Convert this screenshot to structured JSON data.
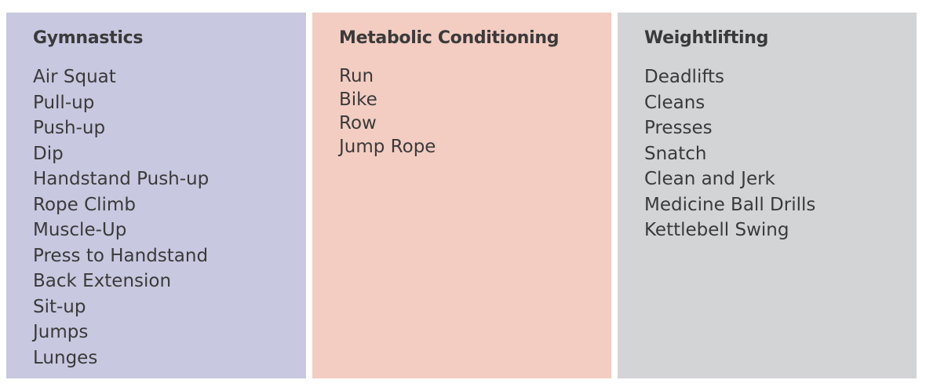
{
  "colors": {
    "gymnastics_bg": "#c8c8e0",
    "metcon_bg": "#f3cdc2",
    "weightlifting_bg": "#d3d4d6",
    "text": "#3a3a3a"
  },
  "columns": [
    {
      "title": "Gymnastics",
      "items": [
        "Air Squat",
        "Pull-up",
        "Push-up",
        "Dip",
        "Handstand Push-up",
        "Rope Climb",
        "Muscle-Up",
        "Press to Handstand",
        "Back Extension",
        "Sit-up",
        "Jumps",
        "Lunges"
      ]
    },
    {
      "title": "Metabolic Conditioning",
      "items": [
        "Run",
        "Bike",
        "Row",
        "Jump Rope"
      ]
    },
    {
      "title": "Weightlifting",
      "items": [
        "Deadlifts",
        "Cleans",
        "Presses",
        "Snatch",
        "Clean and Jerk",
        "Medicine Ball Drills",
        "Kettlebell Swing"
      ]
    }
  ]
}
